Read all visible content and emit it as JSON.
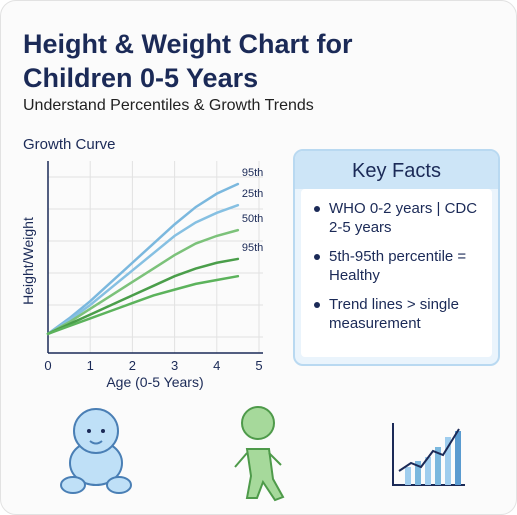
{
  "header": {
    "title_lines": [
      "Height & Weight Chart for",
      "Children 0-5 Years"
    ],
    "subtitle": "Understand Percentiles & Growth Trends"
  },
  "chart_data": {
    "type": "line",
    "title": "Growth Curve",
    "x_label": "Age (0-5 Years)",
    "y_label": "Height/Weight",
    "x": [
      0,
      0.5,
      1,
      1.5,
      2,
      2.5,
      3,
      3.5,
      4,
      4.5
    ],
    "xlim": [
      0,
      5
    ],
    "xticks": [
      0,
      1,
      2,
      3,
      4,
      5
    ],
    "ylim": [
      0,
      100
    ],
    "grid": true,
    "series": [
      {
        "name": "95th",
        "color": "#7bb8de",
        "values": [
          10,
          18,
          27,
          37,
          47,
          57,
          67,
          76,
          83,
          88
        ]
      },
      {
        "name": "25th",
        "color": "#86c0e2",
        "values": [
          10,
          17,
          25,
          34,
          43,
          52,
          61,
          68,
          73,
          77
        ]
      },
      {
        "name": "50th",
        "color": "#7cc27a",
        "values": [
          10,
          16,
          23,
          30,
          37,
          44,
          51,
          57,
          61,
          64
        ]
      },
      {
        "name": "95th",
        "color": "#4a9e4a",
        "values": [
          10,
          15,
          20,
          25,
          30,
          35,
          40,
          44,
          47,
          49
        ]
      },
      {
        "color": "#5cb35c",
        "values": [
          10,
          14,
          18,
          22,
          26,
          30,
          33,
          36,
          38,
          40
        ]
      }
    ]
  },
  "key_facts": {
    "title": "Key Facts",
    "items": [
      "WHO 0-2 years | CDC 2-5 years",
      "5th-95th percentile = Healthy",
      "Trend lines > single measurement"
    ]
  }
}
